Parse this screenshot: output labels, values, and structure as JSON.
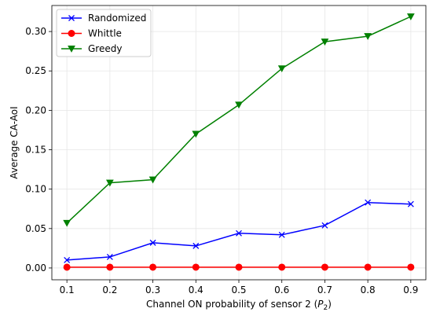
{
  "chart_data": {
    "type": "line",
    "xlabel": "Channel ON probability of sensor 2 (P₂)",
    "ylabel": "Average CA-AoI",
    "x": [
      0.1,
      0.2,
      0.3,
      0.4,
      0.5,
      0.6,
      0.7,
      0.8,
      0.9
    ],
    "xlim": [
      0.065,
      0.935
    ],
    "ylim": [
      -0.015,
      0.333
    ],
    "xticks": [
      "0.1",
      "0.2",
      "0.3",
      "0.4",
      "0.5",
      "0.6",
      "0.7",
      "0.8",
      "0.9"
    ],
    "yticks": [
      "0.00",
      "0.05",
      "0.10",
      "0.15",
      "0.20",
      "0.25",
      "0.30"
    ],
    "ytick_values": [
      0.0,
      0.05,
      0.1,
      0.15,
      0.2,
      0.25,
      0.3
    ],
    "grid": true,
    "legend_position": "top-left",
    "series": [
      {
        "name": "Randomized",
        "color": "#0000ff",
        "marker": "x",
        "values": [
          0.01,
          0.014,
          0.032,
          0.028,
          0.044,
          0.042,
          0.054,
          0.083,
          0.081
        ]
      },
      {
        "name": "Whittle",
        "color": "#ff0000",
        "marker": "circle",
        "values": [
          0.001,
          0.001,
          0.001,
          0.001,
          0.001,
          0.001,
          0.001,
          0.001,
          0.001
        ]
      },
      {
        "name": "Greedy",
        "color": "#008000",
        "marker": "triangle-down",
        "values": [
          0.057,
          0.108,
          0.112,
          0.17,
          0.207,
          0.253,
          0.287,
          0.294,
          0.319
        ]
      }
    ]
  }
}
